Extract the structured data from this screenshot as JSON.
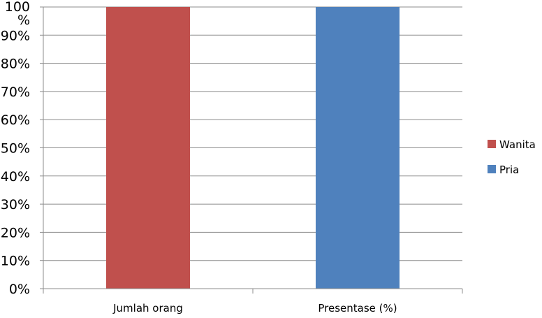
{
  "chart_data": {
    "type": "bar",
    "categories": [
      "Jumlah orang",
      "Presentase (%)"
    ],
    "y_ticks": [
      "0%",
      "10%",
      "20%",
      "30%",
      "40%",
      "50%",
      "60%",
      "70%",
      "80%",
      "90%",
      "100 %"
    ],
    "ylim": [
      0,
      100
    ],
    "grid": true,
    "legend_position": "right",
    "series": [
      {
        "name": "Wanita",
        "color": "#c0504d",
        "values": [
          100,
          0
        ]
      },
      {
        "name": "Pria",
        "color": "#4f81bd",
        "values": [
          0,
          100
        ]
      }
    ],
    "colors": {
      "grid": "#8c8c8c",
      "axis": "#8c8c8c"
    }
  }
}
